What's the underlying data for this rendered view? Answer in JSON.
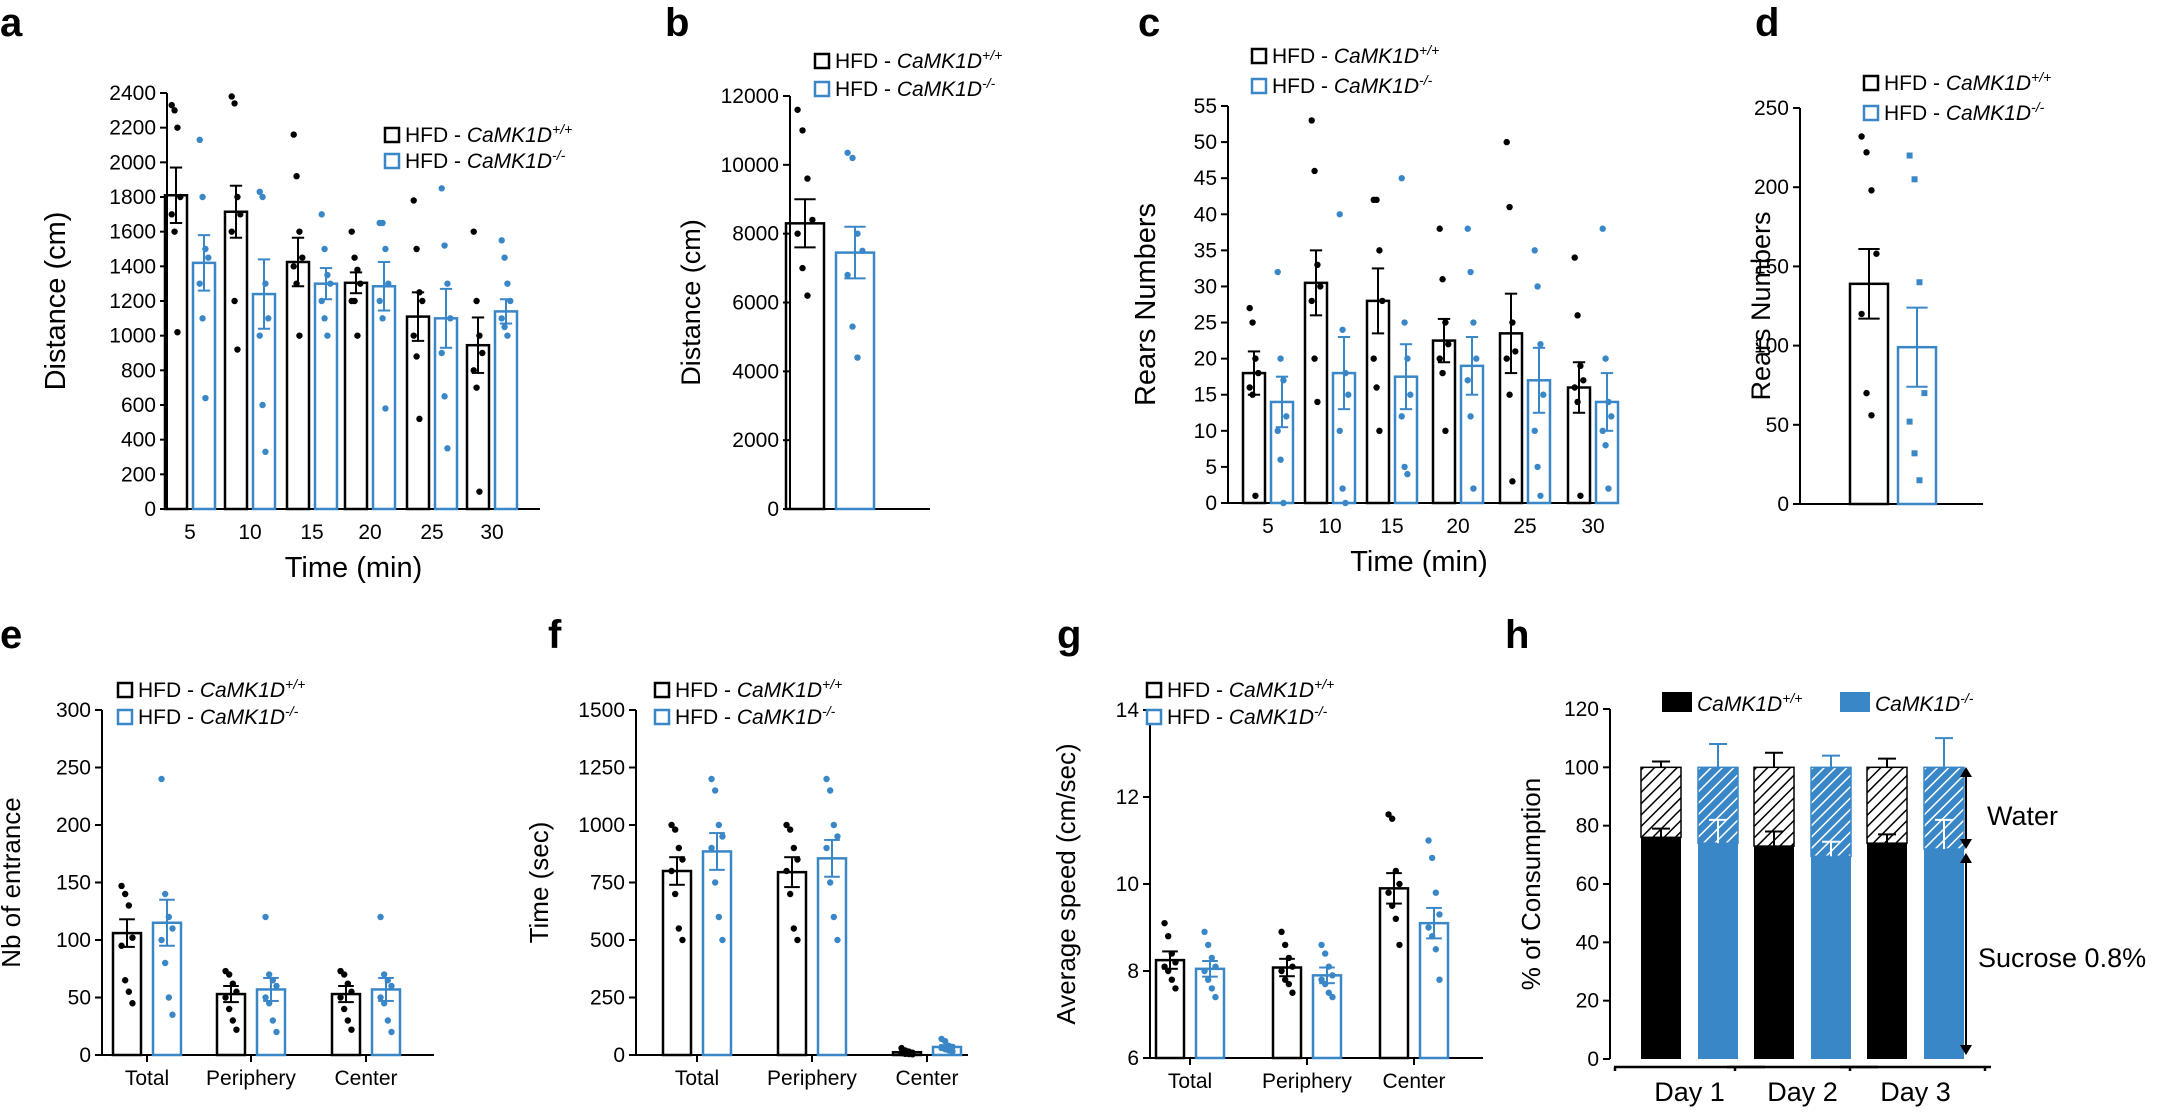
{
  "colors": {
    "black": "#000000",
    "blue": "#3a87c8"
  },
  "legend": {
    "hfd_wt_prefix": "HFD - ",
    "gene_name": "CaMK1D",
    "wt_sup": "+/+",
    "ko_sup": "-/-"
  },
  "chart_data": [
    {
      "panel": "a",
      "type": "bar",
      "categories": [
        "5",
        "10",
        "15",
        "20",
        "25",
        "30"
      ],
      "xlabel": "Time (min)",
      "ylabel": "Distance (cm)",
      "ylim": [
        0,
        2400
      ],
      "yticks": [
        "0",
        "200",
        "400",
        "600",
        "800",
        "1000",
        "1200",
        "1400",
        "1600",
        "1800",
        "2000",
        "2200",
        "2400"
      ],
      "series": [
        {
          "name": "HFD - CaMK1D+/+",
          "values": [
            1810,
            1715,
            1425,
            1305,
            1110,
            945
          ],
          "errors": [
            160,
            150,
            140,
            60,
            140,
            160
          ],
          "points": [
            [
              2330,
              2300,
              2200,
              1800,
              1700,
              1600,
              1020
            ],
            [
              2380,
              2340,
              1800,
              1700,
              1600,
              1200,
              920
            ],
            [
              2160,
              1920,
              1600,
              1450,
              1400,
              1300,
              1000
            ],
            [
              1600,
              1450,
              1380,
              1300,
              1200,
              1200,
              1000
            ],
            [
              1780,
              1500,
              1250,
              1200,
              1000,
              880,
              520
            ],
            [
              1600,
              1200,
              1000,
              900,
              800,
              700,
              100
            ]
          ]
        },
        {
          "name": "HFD - CaMK1D-/-",
          "values": [
            1420,
            1240,
            1300,
            1285,
            1100,
            1140
          ],
          "errors": [
            160,
            200,
            90,
            140,
            170,
            70
          ],
          "points": [
            [
              2130,
              1800,
              1500,
              1450,
              1300,
              1100,
              640
            ],
            [
              1830,
              1800,
              1300,
              1100,
              1000,
              600,
              330
            ],
            [
              1700,
              1500,
              1350,
              1300,
              1200,
              1100,
              1000
            ],
            [
              1650,
              1650,
              1500,
              1300,
              1200,
              1100,
              580
            ],
            [
              1850,
              1520,
              1300,
              1100,
              900,
              650,
              350
            ],
            [
              1550,
              1450,
              1300,
              1200,
              1100,
              1050,
              1000
            ]
          ]
        }
      ]
    },
    {
      "panel": "b",
      "type": "bar",
      "categories": [
        ""
      ],
      "xlabel": "",
      "ylabel": "Distance (cm)",
      "ylim": [
        0,
        12000
      ],
      "yticks": [
        "0",
        "2000",
        "4000",
        "6000",
        "8000",
        "10000",
        "12000"
      ],
      "series": [
        {
          "name": "HFD - CaMK1D+/+",
          "values": [
            8300
          ],
          "errors": [
            700
          ],
          "points": [
            [
              11600,
              11000,
              9600,
              8400,
              8000,
              7000,
              6200
            ]
          ]
        },
        {
          "name": "HFD - CaMK1D-/-",
          "values": [
            7450
          ],
          "errors": [
            750
          ],
          "points": [
            [
              10350,
              10200,
              8000,
              7500,
              6800,
              5300,
              4400
            ]
          ]
        }
      ]
    },
    {
      "panel": "c",
      "type": "bar",
      "categories": [
        "5",
        "10",
        "15",
        "20",
        "25",
        "30"
      ],
      "xlabel": "Time (min)",
      "ylabel": "Rears Numbers",
      "ylim": [
        0,
        55
      ],
      "yticks": [
        "0",
        "5",
        "10",
        "15",
        "20",
        "25",
        "30",
        "35",
        "40",
        "45",
        "50",
        "55"
      ],
      "series": [
        {
          "name": "HFD - CaMK1D+/+",
          "values": [
            18,
            30.5,
            28,
            22.5,
            23.5,
            16
          ],
          "errors": [
            3,
            4.5,
            4.5,
            3,
            5.5,
            3.5
          ],
          "points": [
            [
              27,
              25,
              20,
              18,
              16,
              15,
              1
            ],
            [
              53,
              46,
              33,
              30,
              28,
              20,
              14
            ],
            [
              42,
              42,
              35,
              28,
              20,
              16,
              10
            ],
            [
              38,
              31,
              25,
              22,
              20,
              18,
              10
            ],
            [
              50,
              41,
              25,
              21,
              20,
              15,
              3
            ],
            [
              34,
              26,
              19,
              17,
              16,
              14,
              1
            ]
          ]
        },
        {
          "name": "HFD - CaMK1D-/-",
          "values": [
            14,
            18,
            17.5,
            19,
            17,
            14
          ],
          "errors": [
            3.5,
            5,
            4.5,
            4,
            4.5,
            4
          ],
          "points": [
            [
              32,
              20,
              17,
              12,
              10,
              6,
              0
            ],
            [
              40,
              24,
              18,
              15,
              10,
              2,
              0
            ],
            [
              45,
              25,
              20,
              15,
              12,
              5,
              4
            ],
            [
              38,
              32,
              25,
              20,
              17,
              12,
              2
            ],
            [
              35,
              30,
              22,
              15,
              10,
              5,
              1
            ],
            [
              38,
              20,
              14,
              12,
              10,
              8,
              2
            ]
          ]
        }
      ]
    },
    {
      "panel": "d",
      "type": "bar",
      "categories": [
        ""
      ],
      "xlabel": "",
      "ylabel": "Rears Numbers",
      "ylim": [
        0,
        250
      ],
      "yticks": [
        "0",
        "50",
        "100",
        "150",
        "200",
        "250"
      ],
      "series": [
        {
          "name": "HFD - CaMK1D+/+",
          "values": [
            139
          ],
          "errors": [
            22
          ],
          "points": [
            [
              232,
              222,
              198,
              158,
              120,
              70,
              56
            ]
          ]
        },
        {
          "name": "HFD - CaMK1D-/-",
          "values": [
            99
          ],
          "errors": [
            25
          ],
          "points": [
            [
              220,
              205,
              140,
              70,
              52,
              32,
              15
            ]
          ]
        }
      ]
    },
    {
      "panel": "e",
      "type": "bar",
      "categories": [
        "Total",
        "Periphery",
        "Center"
      ],
      "xlabel": "",
      "ylabel": "Nb of entrance",
      "ylim": [
        0,
        300
      ],
      "yticks": [
        "0",
        "50",
        "100",
        "150",
        "200",
        "250",
        "300"
      ],
      "series": [
        {
          "name": "HFD - CaMK1D+/+",
          "values": [
            106,
            53,
            53
          ],
          "errors": [
            12,
            7,
            7
          ],
          "points": [
            [
              147,
              140,
              130,
              102,
              95,
              65,
              55,
              45
            ],
            [
              73,
              70,
              62,
              55,
              50,
              40,
              30,
              22
            ],
            [
              73,
              70,
              62,
              55,
              50,
              40,
              30,
              22
            ]
          ]
        },
        {
          "name": "HFD - CaMK1D-/-",
          "values": [
            115,
            57,
            57
          ],
          "errors": [
            20,
            10,
            10
          ],
          "points": [
            [
              240,
              140,
              120,
              110,
              100,
              80,
              50,
              35
            ],
            [
              120,
              70,
              65,
              60,
              50,
              45,
              30,
              20
            ],
            [
              120,
              70,
              65,
              60,
              50,
              45,
              30,
              20
            ]
          ]
        }
      ]
    },
    {
      "panel": "f",
      "type": "bar",
      "categories": [
        "Total",
        "Periphery",
        "Center"
      ],
      "xlabel": "",
      "ylabel": "Time (sec)",
      "ylim": [
        0,
        1500
      ],
      "yticks": [
        "0",
        "250",
        "500",
        "750",
        "1000",
        "1250",
        "1500"
      ],
      "series": [
        {
          "name": "HFD - CaMK1D+/+",
          "values": [
            800,
            795,
            12
          ],
          "errors": [
            60,
            65,
            3
          ],
          "points": [
            [
              1000,
              980,
              900,
              850,
              800,
              700,
              550,
              500
            ],
            [
              1000,
              980,
              900,
              850,
              800,
              700,
              550,
              500
            ],
            [
              30,
              20,
              15,
              10,
              8,
              5,
              4,
              3
            ]
          ]
        },
        {
          "name": "HFD - CaMK1D-/-",
          "values": [
            885,
            855,
            35
          ],
          "errors": [
            80,
            80,
            8
          ],
          "points": [
            [
              1200,
              1150,
              1000,
              950,
              900,
              750,
              600,
              500
            ],
            [
              1200,
              1150,
              1000,
              950,
              900,
              750,
              600,
              500
            ],
            [
              70,
              60,
              40,
              35,
              30,
              25,
              20,
              15
            ]
          ]
        }
      ]
    },
    {
      "panel": "g",
      "type": "bar",
      "categories": [
        "Total",
        "Periphery",
        "Center"
      ],
      "xlabel": "",
      "ylabel": "Average speed (cm/sec)",
      "ylim": [
        6,
        14
      ],
      "yticks": [
        "6",
        "8",
        "10",
        "12",
        "14"
      ],
      "series": [
        {
          "name": "HFD - CaMK1D+/+",
          "values": [
            8.25,
            8.08,
            9.9
          ],
          "errors": [
            0.2,
            0.2,
            0.35
          ],
          "points": [
            [
              9.1,
              8.8,
              8.4,
              8.2,
              8.1,
              8.0,
              7.8,
              7.6
            ],
            [
              8.9,
              8.6,
              8.3,
              8.1,
              8.0,
              7.8,
              7.7,
              7.5
            ],
            [
              11.6,
              11.5,
              10.3,
              10.0,
              9.8,
              9.5,
              9.2,
              8.6
            ]
          ]
        },
        {
          "name": "HFD - CaMK1D-/-",
          "values": [
            8.05,
            7.9,
            9.1
          ],
          "errors": [
            0.18,
            0.18,
            0.35
          ],
          "points": [
            [
              8.9,
              8.6,
              8.3,
              8.1,
              8.0,
              7.8,
              7.6,
              7.4
            ],
            [
              8.6,
              8.4,
              8.1,
              7.9,
              7.8,
              7.7,
              7.5,
              7.4
            ],
            [
              11.0,
              10.6,
              9.8,
              9.3,
              9.0,
              8.8,
              8.5,
              7.8
            ]
          ]
        }
      ]
    },
    {
      "panel": "h",
      "type": "bar",
      "stacked": true,
      "categories": [
        "Day 1",
        "Day 2",
        "Day 3"
      ],
      "xlabel": "",
      "ylabel": "% of Consumption",
      "ylim": [
        0,
        120
      ],
      "yticks": [
        "0",
        "20",
        "40",
        "60",
        "80",
        "100",
        "120"
      ],
      "annotations": [
        "Water",
        "Sucrose 0.8%"
      ],
      "series": [
        {
          "name": "CaMK1D+/+",
          "sucrose": [
            76,
            73,
            74
          ],
          "sucrose_err": [
            3,
            5,
            3
          ],
          "total": [
            100,
            100,
            100
          ],
          "total_err": [
            2,
            5,
            3
          ]
        },
        {
          "name": "CaMK1D-/-",
          "sucrose": [
            74,
            69.5,
            72
          ],
          "sucrose_err": [
            8,
            5,
            10
          ],
          "total": [
            100,
            100,
            100
          ],
          "total_err": [
            8,
            4,
            10
          ]
        }
      ]
    }
  ],
  "panel_labels": [
    "a",
    "b",
    "c",
    "d",
    "e",
    "f",
    "g",
    "h"
  ]
}
